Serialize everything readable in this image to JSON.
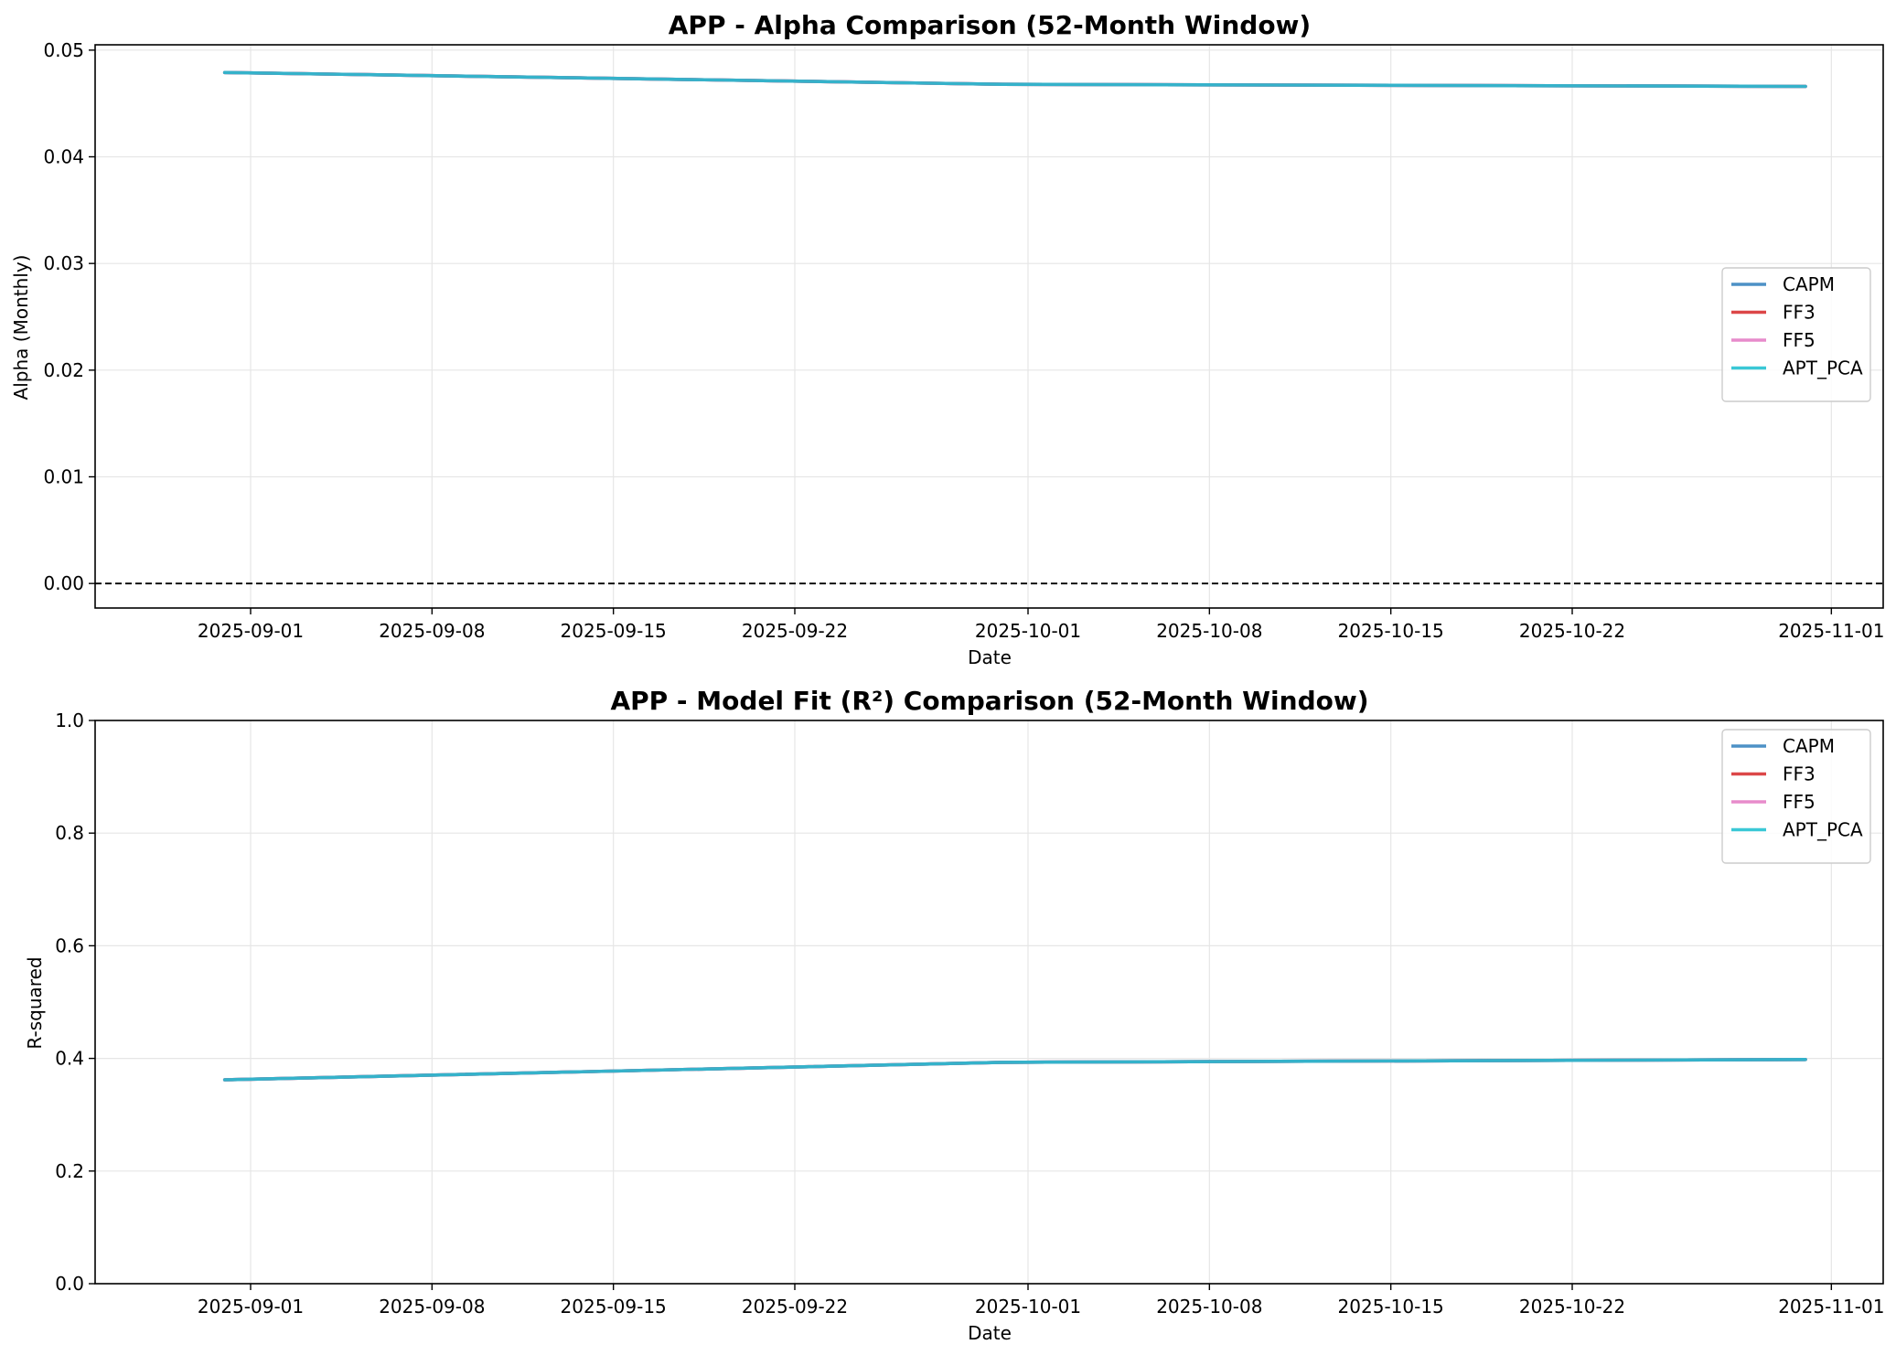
{
  "chart_data": [
    {
      "type": "line",
      "title": "APP - Alpha Comparison (52-Month Window)",
      "xlabel": "Date",
      "ylabel": "Alpha (Monthly)",
      "xlim": [
        "2025-08-26",
        "2025-11-03"
      ],
      "ylim": [
        -0.0023,
        0.0505
      ],
      "xticks": [
        "2025-09-01",
        "2025-09-08",
        "2025-09-15",
        "2025-09-22",
        "2025-10-01",
        "2025-10-08",
        "2025-10-15",
        "2025-10-22",
        "2025-11-01"
      ],
      "yticks": [
        "0.00",
        "0.01",
        "0.02",
        "0.03",
        "0.04",
        "0.05"
      ],
      "grid": true,
      "legend_position": "center-right",
      "reference_line": {
        "y": 0,
        "style": "dashed",
        "color": "#000000"
      },
      "x": [
        "2025-08-31",
        "2025-09-30",
        "2025-10-31"
      ],
      "series": [
        {
          "name": "CAPM",
          "color": "#2e7ebc",
          "values": [
            0.0479,
            0.0468,
            0.0466
          ]
        },
        {
          "name": "FF3",
          "color": "#d62728",
          "values": [
            0.0479,
            0.0468,
            0.0466
          ]
        },
        {
          "name": "FF5",
          "color": "#e377c2",
          "values": [
            0.0479,
            0.0468,
            0.0466
          ]
        },
        {
          "name": "APT_PCA",
          "color": "#17becf",
          "values": [
            0.0479,
            0.0468,
            0.0466
          ]
        }
      ]
    },
    {
      "type": "line",
      "title": "APP - Model Fit (R²) Comparison (52-Month Window)",
      "xlabel": "Date",
      "ylabel": "R-squared",
      "xlim": [
        "2025-08-26",
        "2025-11-03"
      ],
      "ylim": [
        0,
        1
      ],
      "xticks": [
        "2025-09-01",
        "2025-09-08",
        "2025-09-15",
        "2025-09-22",
        "2025-10-01",
        "2025-10-08",
        "2025-10-15",
        "2025-10-22",
        "2025-11-01"
      ],
      "yticks": [
        "0.0",
        "0.2",
        "0.4",
        "0.6",
        "0.8",
        "1.0"
      ],
      "grid": true,
      "legend_position": "top-right",
      "x": [
        "2025-08-31",
        "2025-09-30",
        "2025-10-31"
      ],
      "series": [
        {
          "name": "CAPM",
          "color": "#2e7ebc",
          "values": [
            0.362,
            0.393,
            0.398
          ]
        },
        {
          "name": "FF3",
          "color": "#d62728",
          "values": [
            0.362,
            0.393,
            0.398
          ]
        },
        {
          "name": "FF5",
          "color": "#e377c2",
          "values": [
            0.362,
            0.393,
            0.398
          ]
        },
        {
          "name": "APT_PCA",
          "color": "#17becf",
          "values": [
            0.362,
            0.393,
            0.398
          ]
        }
      ]
    }
  ]
}
